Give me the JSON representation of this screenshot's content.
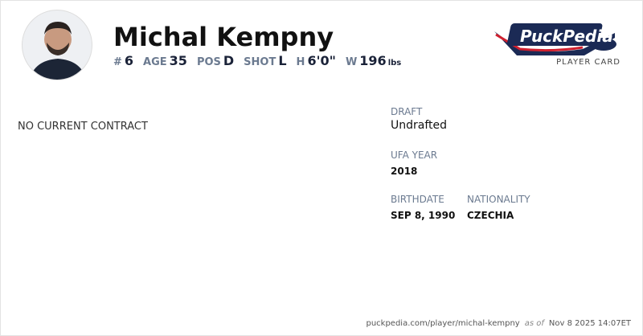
{
  "player": {
    "name": "Michal Kempny",
    "stats": [
      {
        "label": "#",
        "value": "6"
      },
      {
        "label": "AGE",
        "value": "35"
      },
      {
        "label": "POS",
        "value": "D"
      },
      {
        "label": "SHOT",
        "value": "L"
      },
      {
        "label": "H",
        "value": "6'0\""
      },
      {
        "label": "W",
        "value": "196",
        "unit": "lbs"
      }
    ]
  },
  "brand": {
    "logo_text": "PuckPedia",
    "subtitle": "PLAYER CARD",
    "colors": {
      "navy": "#1b2a55",
      "red": "#d0202f"
    }
  },
  "contract": {
    "status": "NO CURRENT CONTRACT"
  },
  "details": {
    "draft_label": "DRAFT",
    "draft": "Undrafted",
    "ufa_label": "UFA YEAR",
    "ufa": "2018",
    "birth_label": "BIRTHDATE",
    "birth": "SEP 8, 1990",
    "nat_label": "NATIONALITY",
    "nat": "CZECHIA"
  },
  "footer": {
    "url": "puckpedia.com/player/michal-kempny",
    "as_of": "as of",
    "date": "Nov 8 2025 14:07ET"
  }
}
